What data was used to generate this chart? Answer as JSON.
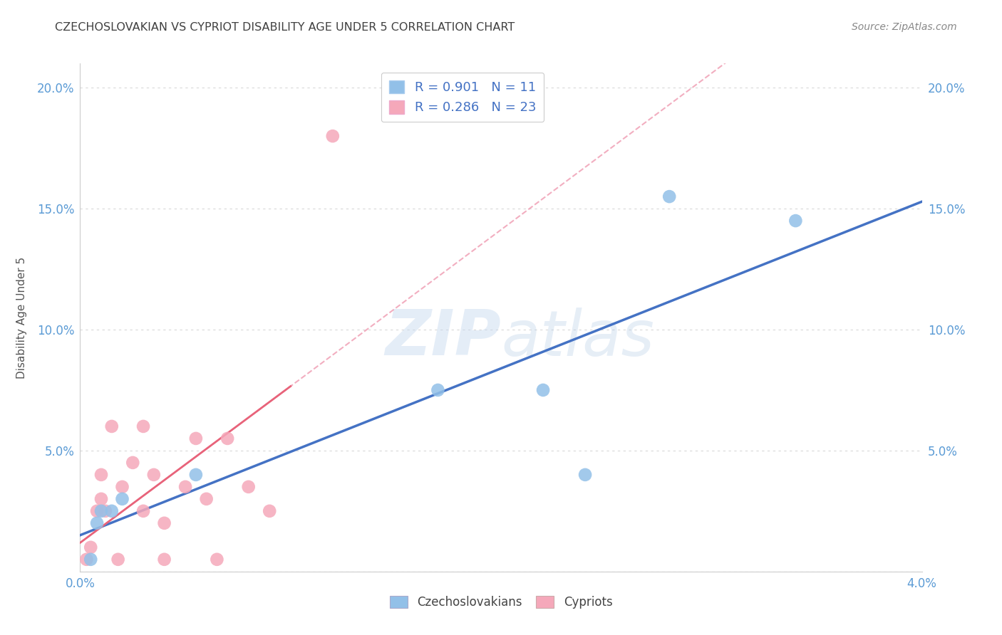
{
  "title": "CZECHOSLOVAKIAN VS CYPRIOT DISABILITY AGE UNDER 5 CORRELATION CHART",
  "source": "Source: ZipAtlas.com",
  "ylabel": "Disability Age Under 5",
  "xlim": [
    0.0,
    0.04
  ],
  "ylim": [
    0.0,
    0.21
  ],
  "x_tick_positions": [
    0.0,
    0.01,
    0.02,
    0.03,
    0.04
  ],
  "x_tick_labels": [
    "0.0%",
    "",
    "",
    "",
    "4.0%"
  ],
  "y_tick_positions": [
    0.0,
    0.05,
    0.1,
    0.15,
    0.2
  ],
  "y_tick_labels": [
    "",
    "5.0%",
    "10.0%",
    "15.0%",
    "20.0%"
  ],
  "legend_r_czech": "R = 0.901",
  "legend_n_czech": "N = 11",
  "legend_r_cypriot": "R = 0.286",
  "legend_n_cypriot": "N = 23",
  "czech_color": "#92c0e8",
  "cypriot_color": "#f5a8ba",
  "czech_line_color": "#4472c4",
  "cypriot_line_color": "#e8637a",
  "cypriot_dash_color": "#f0a0b5",
  "background_color": "#ffffff",
  "grid_color": "#d8d8d8",
  "title_color": "#404040",
  "axis_label_color": "#5b9bd5",
  "watermark": "ZIPatlas",
  "czech_x": [
    0.0005,
    0.0008,
    0.001,
    0.0015,
    0.002,
    0.0055,
    0.017,
    0.022,
    0.024,
    0.028,
    0.034
  ],
  "czech_y": [
    0.005,
    0.02,
    0.025,
    0.025,
    0.03,
    0.04,
    0.075,
    0.075,
    0.04,
    0.155,
    0.145
  ],
  "cypriot_x": [
    0.0003,
    0.0005,
    0.0008,
    0.001,
    0.001,
    0.0012,
    0.0015,
    0.0018,
    0.002,
    0.0025,
    0.003,
    0.003,
    0.0035,
    0.004,
    0.004,
    0.005,
    0.0055,
    0.006,
    0.0065,
    0.007,
    0.008,
    0.009,
    0.012
  ],
  "cypriot_y": [
    0.005,
    0.01,
    0.025,
    0.03,
    0.04,
    0.025,
    0.06,
    0.005,
    0.035,
    0.045,
    0.025,
    0.06,
    0.04,
    0.005,
    0.02,
    0.035,
    0.055,
    0.03,
    0.005,
    0.055,
    0.035,
    0.025,
    0.18
  ]
}
